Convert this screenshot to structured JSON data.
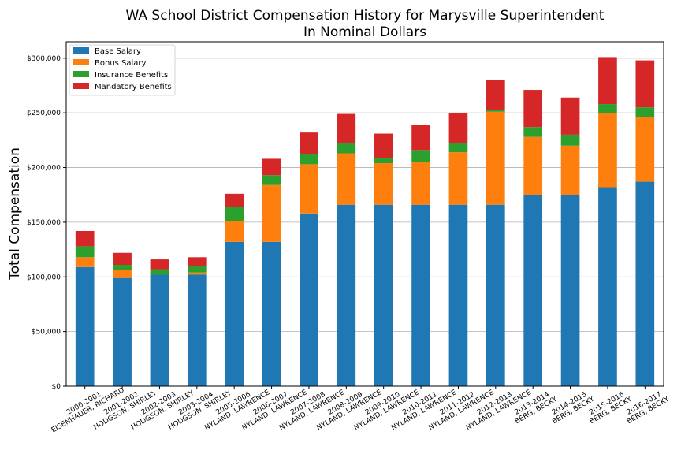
{
  "chart_data": {
    "type": "bar",
    "stacked": true,
    "title": "WA School District Compensation History for Marysville Superintendent",
    "subtitle": "In Nominal Dollars",
    "xlabel": "",
    "ylabel": "Total Compensation",
    "ylim": [
      0,
      315000
    ],
    "yticks": [
      0,
      50000,
      100000,
      150000,
      200000,
      250000,
      300000
    ],
    "ytick_labels": [
      "$0",
      "$50,000",
      "$100,000",
      "$150,000",
      "$200,000",
      "$250,000",
      "$300,000"
    ],
    "grid": "horizontal",
    "legend_position": "top-left",
    "categories": [
      [
        "2000-2001",
        "EISENHAUER, RICHARD"
      ],
      [
        "2001-2002",
        "HODGSON, SHIRLEY"
      ],
      [
        "2002-2003",
        "HODGSON, SHIRLEY"
      ],
      [
        "2003-2004",
        "HODGSON, SHIRLEY"
      ],
      [
        "2005-2006",
        "NYLAND, LAWRENCE"
      ],
      [
        "2006-2007",
        "NYLAND, LAWRENCE"
      ],
      [
        "2007-2008",
        "NYLAND, LAWRENCE"
      ],
      [
        "2008-2009",
        "NYLAND, LAWRENCE"
      ],
      [
        "2009-2010",
        "NYLAND, LAWRENCE"
      ],
      [
        "2010-2011",
        "NYLAND, LAWRENCE"
      ],
      [
        "2011-2012",
        "NYLAND, LAWRENCE"
      ],
      [
        "2012-2013",
        "NYLAND, LAWRENCE"
      ],
      [
        "2013-2014",
        "BERG, BECKY"
      ],
      [
        "2014-2015",
        "BERG, BECKY"
      ],
      [
        "2015-2016",
        "BERG, BECKY"
      ],
      [
        "2016-2017",
        "BERG, BECKY"
      ]
    ],
    "series": [
      {
        "name": "Base Salary",
        "color": "#1f77b4",
        "values": [
          109000,
          99000,
          102000,
          102000,
          132000,
          132000,
          158000,
          166000,
          166000,
          166000,
          166000,
          166000,
          175000,
          175000,
          182000,
          187000
        ]
      },
      {
        "name": "Bonus Salary",
        "color": "#ff7f0e",
        "values": [
          9000,
          7000,
          0,
          2000,
          19000,
          52000,
          45000,
          47000,
          38000,
          39000,
          48000,
          85000,
          53000,
          45000,
          68000,
          59000
        ]
      },
      {
        "name": "Insurance Benefits",
        "color": "#2ca02c",
        "values": [
          10000,
          5000,
          5000,
          6000,
          13000,
          9000,
          9000,
          9000,
          5000,
          11000,
          8000,
          2000,
          9000,
          10000,
          8000,
          9000
        ]
      },
      {
        "name": "Mandatory Benefits",
        "color": "#d62728",
        "values": [
          14000,
          11000,
          9000,
          8000,
          12000,
          15000,
          20000,
          27000,
          22000,
          23000,
          28000,
          27000,
          34000,
          34000,
          43000,
          43000
        ]
      }
    ]
  }
}
